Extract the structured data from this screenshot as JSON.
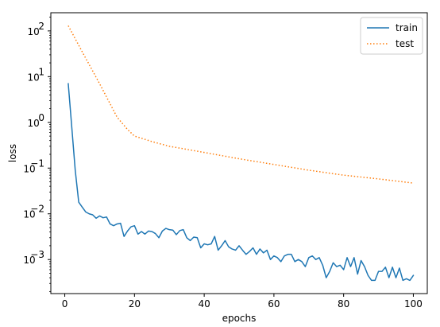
{
  "chart_data": {
    "type": "line",
    "title": "",
    "xlabel": "epochs",
    "ylabel": "loss",
    "xlim": [
      -4,
      104
    ],
    "ylim": [
      0.00018,
      250
    ],
    "yscale": "log",
    "x_ticks": [
      0,
      20,
      40,
      60,
      80,
      100
    ],
    "y_ticks": [
      {
        "value": 100,
        "base": "10",
        "exp": "2"
      },
      {
        "value": 10,
        "base": "10",
        "exp": "1"
      },
      {
        "value": 1,
        "base": "10",
        "exp": "0"
      },
      {
        "value": 0.1,
        "base": "10",
        "exp": "−1"
      },
      {
        "value": 0.01,
        "base": "10",
        "exp": "−2"
      },
      {
        "value": 0.001,
        "base": "10",
        "exp": "−3"
      }
    ],
    "grid": false,
    "legend_position": "top-right",
    "series": [
      {
        "name": "train",
        "style": "solid",
        "color": "#1f77b4",
        "x": [
          1,
          2,
          3,
          4,
          5,
          6,
          7,
          8,
          9,
          10,
          11,
          12,
          13,
          14,
          15,
          16,
          17,
          18,
          19,
          20,
          21,
          22,
          23,
          24,
          25,
          26,
          27,
          28,
          29,
          30,
          31,
          32,
          33,
          34,
          35,
          36,
          37,
          38,
          39,
          40,
          41,
          42,
          43,
          44,
          45,
          46,
          47,
          48,
          49,
          50,
          51,
          52,
          53,
          54,
          55,
          56,
          57,
          58,
          59,
          60,
          61,
          62,
          63,
          64,
          65,
          66,
          67,
          68,
          69,
          70,
          71,
          72,
          73,
          74,
          75,
          76,
          77,
          78,
          79,
          80,
          81,
          82,
          83,
          84,
          85,
          86,
          87,
          88,
          89,
          90,
          91,
          92,
          93,
          94,
          95,
          96,
          97,
          98,
          99,
          100
        ],
        "y": [
          7.0,
          0.8,
          0.09,
          0.018,
          0.014,
          0.011,
          0.01,
          0.0095,
          0.008,
          0.009,
          0.0082,
          0.0085,
          0.006,
          0.0055,
          0.006,
          0.0062,
          0.0032,
          0.0042,
          0.0052,
          0.0055,
          0.0036,
          0.0041,
          0.0036,
          0.0042,
          0.0041,
          0.0037,
          0.003,
          0.0042,
          0.0048,
          0.0045,
          0.0044,
          0.0035,
          0.0043,
          0.0045,
          0.003,
          0.0026,
          0.0031,
          0.003,
          0.0018,
          0.0022,
          0.0021,
          0.0022,
          0.0032,
          0.0016,
          0.002,
          0.0026,
          0.0019,
          0.0017,
          0.0016,
          0.002,
          0.0016,
          0.0013,
          0.0015,
          0.0018,
          0.0013,
          0.0017,
          0.0014,
          0.0016,
          0.001,
          0.0012,
          0.0011,
          0.0009,
          0.0012,
          0.0013,
          0.0013,
          0.0009,
          0.001,
          0.0009,
          0.0007,
          0.0011,
          0.0012,
          0.001,
          0.0011,
          0.00075,
          0.0004,
          0.00055,
          0.00085,
          0.0007,
          0.00075,
          0.0006,
          0.0011,
          0.0007,
          0.0011,
          0.00048,
          0.00095,
          0.0007,
          0.00045,
          0.00035,
          0.00035,
          0.00055,
          0.00055,
          0.00068,
          0.0004,
          0.00068,
          0.0004,
          0.00065,
          0.00035,
          0.00038,
          0.00035,
          0.00045
        ]
      },
      {
        "name": "test",
        "style": "dotted",
        "color": "#ff7f0e",
        "x": [
          1,
          5,
          10,
          15,
          18,
          20,
          22,
          25,
          30,
          40,
          50,
          60,
          70,
          80,
          90,
          100
        ],
        "y": [
          130,
          35,
          7,
          1.3,
          0.7,
          0.5,
          0.45,
          0.38,
          0.3,
          0.22,
          0.16,
          0.12,
          0.09,
          0.07,
          0.058,
          0.047
        ]
      }
    ]
  }
}
